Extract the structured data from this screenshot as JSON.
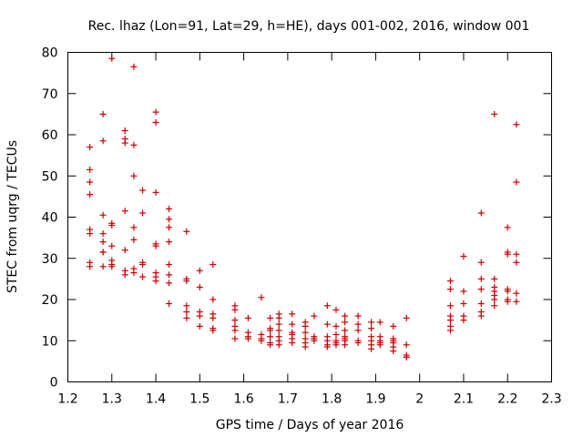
{
  "chart_data": {
    "type": "scatter",
    "title": "Rec. lhaz (Lon=91, Lat=29, h=HE), days 001-002, 2016, window 001",
    "xlabel": "GPS time / Days of year 2016",
    "ylabel": "STEC from uqrg / TECUs",
    "xlim": [
      1.2,
      2.3
    ],
    "ylim": [
      0,
      80
    ],
    "xticks": [
      "1.2",
      "1.3",
      "1.4",
      "1.5",
      "1.6",
      "1.7",
      "1.8",
      "1.9",
      "2",
      "2.1",
      "2.2",
      "2.3"
    ],
    "yticks": [
      "0",
      "10",
      "20",
      "30",
      "40",
      "50",
      "60",
      "70",
      "80"
    ],
    "grid": false,
    "marker": "+",
    "color": "#cc0000",
    "series": [
      {
        "name": "STEC",
        "points": [
          [
            1.25,
            57
          ],
          [
            1.25,
            51.5
          ],
          [
            1.25,
            48.5
          ],
          [
            1.25,
            45.5
          ],
          [
            1.25,
            37
          ],
          [
            1.25,
            36
          ],
          [
            1.25,
            29
          ],
          [
            1.25,
            28
          ],
          [
            1.28,
            65
          ],
          [
            1.28,
            58.5
          ],
          [
            1.28,
            40.5
          ],
          [
            1.28,
            36
          ],
          [
            1.28,
            34
          ],
          [
            1.28,
            31.5
          ],
          [
            1.28,
            31.5
          ],
          [
            1.28,
            28
          ],
          [
            1.3,
            78.5
          ],
          [
            1.3,
            38.5
          ],
          [
            1.3,
            38
          ],
          [
            1.3,
            33
          ],
          [
            1.3,
            29.5
          ],
          [
            1.3,
            28.5
          ],
          [
            1.3,
            28
          ],
          [
            1.33,
            61
          ],
          [
            1.33,
            59
          ],
          [
            1.33,
            58
          ],
          [
            1.33,
            41.5
          ],
          [
            1.33,
            32
          ],
          [
            1.33,
            27
          ],
          [
            1.33,
            26
          ],
          [
            1.35,
            76.5
          ],
          [
            1.35,
            57.5
          ],
          [
            1.35,
            50
          ],
          [
            1.35,
            37.5
          ],
          [
            1.35,
            34.5
          ],
          [
            1.35,
            27.5
          ],
          [
            1.35,
            26.5
          ],
          [
            1.37,
            46.5
          ],
          [
            1.37,
            41
          ],
          [
            1.37,
            29
          ],
          [
            1.37,
            28.5
          ],
          [
            1.37,
            25.5
          ],
          [
            1.4,
            65.5
          ],
          [
            1.4,
            63
          ],
          [
            1.4,
            46
          ],
          [
            1.4,
            33.5
          ],
          [
            1.4,
            33
          ],
          [
            1.4,
            26.5
          ],
          [
            1.4,
            25.5
          ],
          [
            1.4,
            24.5
          ],
          [
            1.43,
            42
          ],
          [
            1.43,
            39.5
          ],
          [
            1.43,
            37.5
          ],
          [
            1.43,
            34
          ],
          [
            1.43,
            28.5
          ],
          [
            1.43,
            26
          ],
          [
            1.43,
            24
          ],
          [
            1.43,
            19
          ],
          [
            1.47,
            36.5
          ],
          [
            1.47,
            25
          ],
          [
            1.47,
            24.5
          ],
          [
            1.47,
            18.5
          ],
          [
            1.47,
            17
          ],
          [
            1.47,
            15.5
          ],
          [
            1.5,
            27
          ],
          [
            1.5,
            23
          ],
          [
            1.5,
            17
          ],
          [
            1.5,
            16
          ],
          [
            1.5,
            13.5
          ],
          [
            1.53,
            28.5
          ],
          [
            1.53,
            20
          ],
          [
            1.53,
            16.5
          ],
          [
            1.53,
            15.5
          ],
          [
            1.53,
            13
          ],
          [
            1.53,
            12.5
          ],
          [
            1.58,
            18.5
          ],
          [
            1.58,
            17.5
          ],
          [
            1.58,
            15
          ],
          [
            1.58,
            13.5
          ],
          [
            1.58,
            12.5
          ],
          [
            1.58,
            10.5
          ],
          [
            1.61,
            15.5
          ],
          [
            1.61,
            12
          ],
          [
            1.61,
            11
          ],
          [
            1.61,
            10.5
          ],
          [
            1.64,
            20.5
          ],
          [
            1.64,
            11.5
          ],
          [
            1.64,
            10.5
          ],
          [
            1.64,
            10
          ],
          [
            1.66,
            15.5
          ],
          [
            1.66,
            13
          ],
          [
            1.66,
            12.5
          ],
          [
            1.66,
            11
          ],
          [
            1.66,
            9.5
          ],
          [
            1.66,
            9
          ],
          [
            1.68,
            16.5
          ],
          [
            1.68,
            15.5
          ],
          [
            1.68,
            14
          ],
          [
            1.68,
            12.5
          ],
          [
            1.68,
            11
          ],
          [
            1.68,
            10
          ],
          [
            1.68,
            9
          ],
          [
            1.71,
            16.5
          ],
          [
            1.71,
            14
          ],
          [
            1.71,
            12
          ],
          [
            1.71,
            11.5
          ],
          [
            1.71,
            10.5
          ],
          [
            1.71,
            9.5
          ],
          [
            1.74,
            14.5
          ],
          [
            1.74,
            13.5
          ],
          [
            1.74,
            12
          ],
          [
            1.74,
            10.5
          ],
          [
            1.74,
            9.5
          ],
          [
            1.74,
            8.5
          ],
          [
            1.76,
            16
          ],
          [
            1.76,
            11
          ],
          [
            1.76,
            10.5
          ],
          [
            1.76,
            10
          ],
          [
            1.79,
            18.5
          ],
          [
            1.79,
            14
          ],
          [
            1.79,
            11
          ],
          [
            1.79,
            10
          ],
          [
            1.79,
            9
          ],
          [
            1.79,
            8.5
          ],
          [
            1.81,
            17.5
          ],
          [
            1.81,
            13.5
          ],
          [
            1.81,
            11.5
          ],
          [
            1.81,
            10
          ],
          [
            1.81,
            9.5
          ],
          [
            1.81,
            9
          ],
          [
            1.83,
            16
          ],
          [
            1.83,
            14.5
          ],
          [
            1.83,
            12.5
          ],
          [
            1.83,
            11
          ],
          [
            1.83,
            10.5
          ],
          [
            1.83,
            10
          ],
          [
            1.83,
            9
          ],
          [
            1.86,
            16
          ],
          [
            1.86,
            14
          ],
          [
            1.86,
            12.5
          ],
          [
            1.86,
            10
          ],
          [
            1.86,
            9.5
          ],
          [
            1.89,
            14.5
          ],
          [
            1.89,
            13
          ],
          [
            1.89,
            11
          ],
          [
            1.89,
            10
          ],
          [
            1.89,
            9
          ],
          [
            1.89,
            8
          ],
          [
            1.91,
            14.5
          ],
          [
            1.91,
            11
          ],
          [
            1.91,
            10
          ],
          [
            1.91,
            9.5
          ],
          [
            1.91,
            9
          ],
          [
            1.94,
            13.5
          ],
          [
            1.94,
            10.5
          ],
          [
            1.94,
            10
          ],
          [
            1.94,
            9.5
          ],
          [
            1.94,
            8.5
          ],
          [
            1.94,
            7.5
          ],
          [
            1.97,
            15.5
          ],
          [
            1.97,
            9
          ],
          [
            1.97,
            6.5
          ],
          [
            1.97,
            6
          ],
          [
            1.97,
            6
          ],
          [
            2.07,
            24.5
          ],
          [
            2.07,
            22.5
          ],
          [
            2.07,
            18.5
          ],
          [
            2.07,
            16
          ],
          [
            2.07,
            15
          ],
          [
            2.07,
            13.5
          ],
          [
            2.07,
            12.5
          ],
          [
            2.1,
            30.5
          ],
          [
            2.1,
            22
          ],
          [
            2.1,
            19
          ],
          [
            2.1,
            16
          ],
          [
            2.1,
            15
          ],
          [
            2.14,
            41
          ],
          [
            2.14,
            29
          ],
          [
            2.14,
            25
          ],
          [
            2.14,
            22.5
          ],
          [
            2.14,
            19
          ],
          [
            2.14,
            17
          ],
          [
            2.14,
            16
          ],
          [
            2.17,
            65
          ],
          [
            2.17,
            25
          ],
          [
            2.17,
            23
          ],
          [
            2.17,
            22
          ],
          [
            2.17,
            21
          ],
          [
            2.17,
            20
          ],
          [
            2.17,
            18.5
          ],
          [
            2.2,
            37.5
          ],
          [
            2.2,
            31.5
          ],
          [
            2.2,
            31
          ],
          [
            2.2,
            22.5
          ],
          [
            2.2,
            22
          ],
          [
            2.2,
            20
          ],
          [
            2.2,
            19.5
          ],
          [
            2.22,
            62.5
          ],
          [
            2.22,
            48.5
          ],
          [
            2.22,
            31
          ],
          [
            2.22,
            29
          ],
          [
            2.22,
            21.5
          ],
          [
            2.22,
            19.5
          ]
        ]
      }
    ]
  }
}
